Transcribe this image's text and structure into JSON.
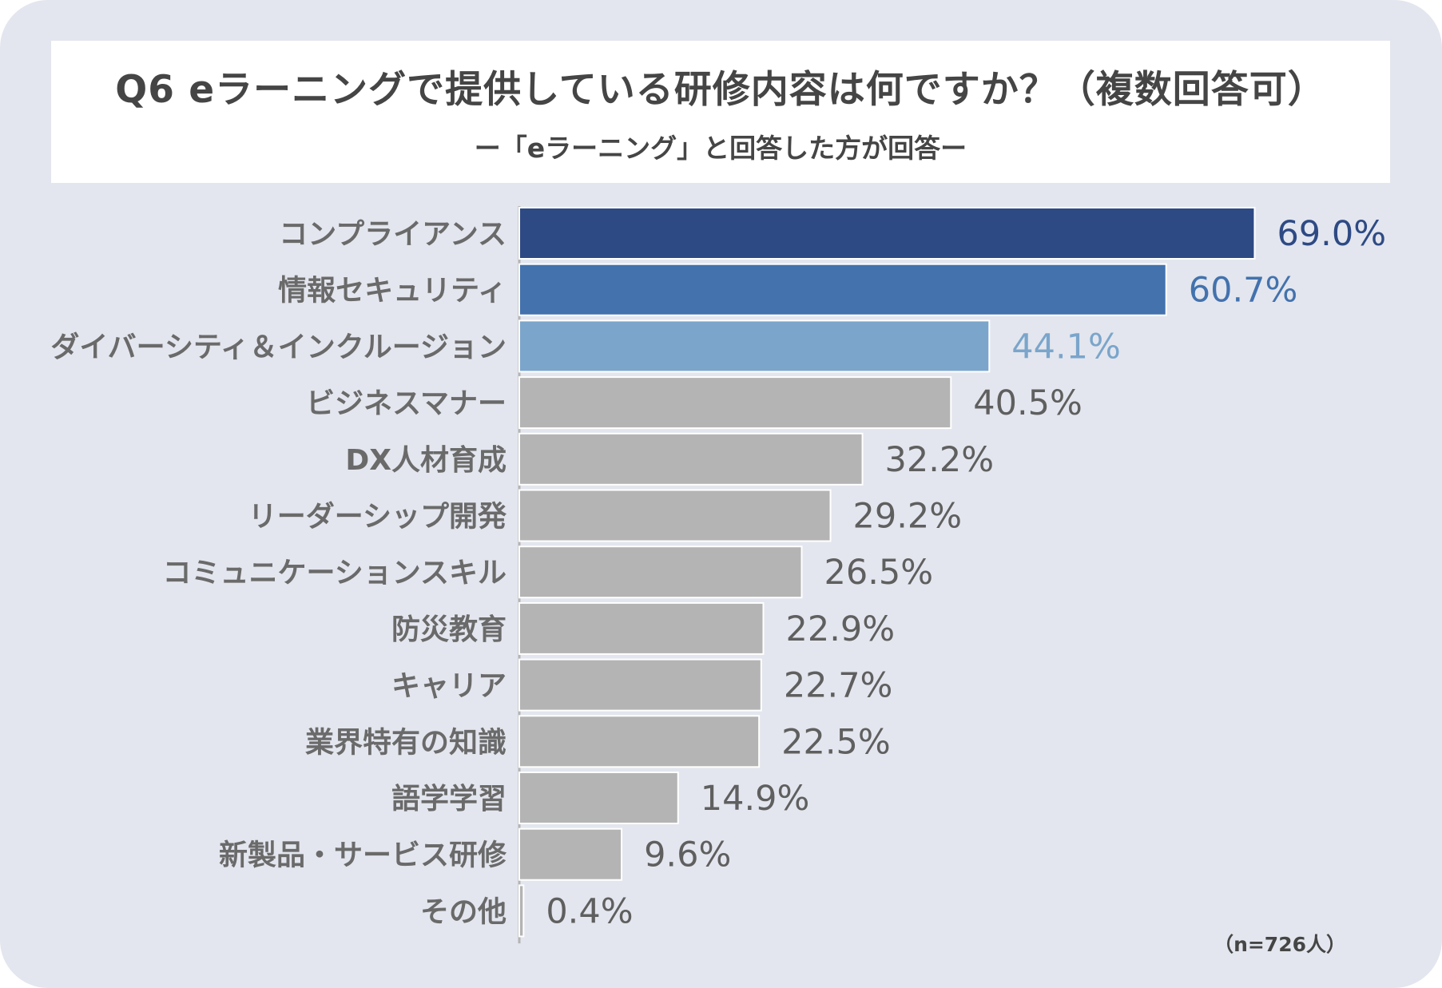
{
  "title": "Q6 eラーニングで提供している研修内容は何ですか？（複数回答可）",
  "subtitle": "ー「eラーニング」と回答した方が回答ー",
  "note": "（n=726人）",
  "chart_data": {
    "type": "bar",
    "orientation": "horizontal",
    "title": "Q6 eラーニングで提供している研修内容は何ですか？（複数回答可）",
    "subtitle": "ー「eラーニング」と回答した方が回答ー",
    "categories": [
      "コンプライアンス",
      "情報セキュリティ",
      "ダイバーシティ＆インクルージョン",
      "ビジネスマナー",
      "DX人材育成",
      "リーダーシップ開発",
      "コミュニケーションスキル",
      "防災教育",
      "キャリア",
      "業界特有の知識",
      "語学学習",
      "新製品・サービス研修",
      "その他"
    ],
    "values": [
      69.0,
      60.7,
      44.1,
      40.5,
      32.2,
      29.2,
      26.5,
      22.9,
      22.7,
      22.5,
      14.9,
      9.6,
      0.4
    ],
    "value_labels": [
      "69.0%",
      "60.7%",
      "44.1%",
      "40.5%",
      "32.2%",
      "29.2%",
      "26.5%",
      "22.9%",
      "22.7%",
      "22.5%",
      "14.9%",
      "9.6%",
      "0.4%"
    ],
    "unit": "%",
    "xlim": [
      0,
      70
    ],
    "grid": false,
    "bar_colors": [
      "#2e4a84",
      "#4372ad",
      "#7ba5cb",
      "#b4b4b4",
      "#b4b4b4",
      "#b4b4b4",
      "#b4b4b4",
      "#b4b4b4",
      "#b4b4b4",
      "#b4b4b4",
      "#b4b4b4",
      "#b4b4b4",
      "#b4b4b4"
    ],
    "label_colors": [
      "#2e4a84",
      "#4372ad",
      "#7ba5cb",
      "#5f5f5f",
      "#5f5f5f",
      "#5f5f5f",
      "#5f5f5f",
      "#5f5f5f",
      "#5f5f5f",
      "#5f5f5f",
      "#5f5f5f",
      "#5f5f5f",
      "#5f5f5f"
    ],
    "sample_size": "n=726"
  }
}
